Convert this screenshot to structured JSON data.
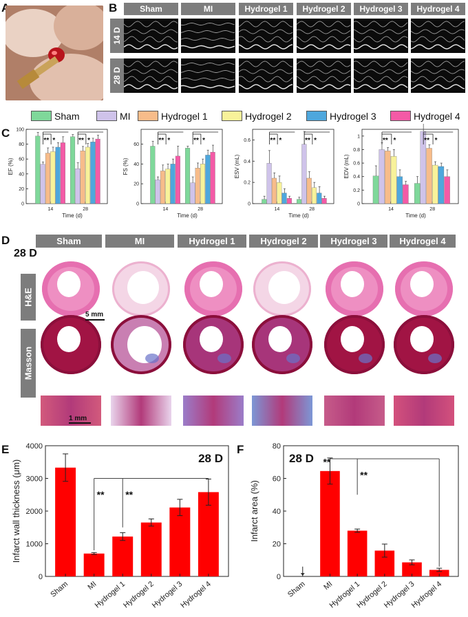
{
  "panel_letters": [
    "A",
    "B",
    "C",
    "D",
    "E",
    "F"
  ],
  "panelB": {
    "groups": [
      "Sham",
      "MI",
      "Hydrogel 1",
      "Hydrogel 2",
      "Hydrogel 3",
      "Hydrogel 4"
    ],
    "rows": [
      "14 D",
      "28 D"
    ]
  },
  "legend": [
    {
      "label": "Sham",
      "color": "#7fd89a"
    },
    {
      "label": "MI",
      "color": "#cfc3ea"
    },
    {
      "label": "Hydrogel 1",
      "color": "#f7bc8a"
    },
    {
      "label": "Hydrogel 2",
      "color": "#f8f29a"
    },
    {
      "label": "Hydrogel 3",
      "color": "#4ea7dd"
    },
    {
      "label": "Hydrogel 4",
      "color": "#f45aa6"
    }
  ],
  "panelD": {
    "day_label": "28 D",
    "groups": [
      "Sham",
      "MI",
      "Hydrogel 1",
      "Hydrogel 2",
      "Hydrogel 3",
      "Hydrogel 4"
    ],
    "stains": [
      "H&E",
      "Masson"
    ],
    "scale_top": "5 mm",
    "scale_bottom": "1 mm"
  },
  "chart_data": [
    {
      "type": "bar",
      "panel": "C",
      "xlabel": "Time (d)",
      "ylabel": "EF (%)",
      "categories": [
        "14",
        "28"
      ],
      "series": [
        {
          "name": "Sham",
          "values": [
            91,
            90
          ]
        },
        {
          "name": "MI",
          "values": [
            53,
            47
          ]
        },
        {
          "name": "Hydrogel 1",
          "values": [
            68,
            71
          ]
        },
        {
          "name": "Hydrogel 2",
          "values": [
            70,
            76
          ]
        },
        {
          "name": "Hydrogel 3",
          "values": [
            76,
            83
          ]
        },
        {
          "name": "Hydrogel 4",
          "values": [
            82,
            87
          ]
        }
      ],
      "errors": [
        [
          5,
          3
        ],
        [
          3,
          8
        ],
        [
          7,
          6
        ],
        [
          6,
          5
        ],
        [
          6,
          5
        ],
        [
          8,
          5
        ]
      ],
      "ylim": [
        0,
        100
      ],
      "sig": [
        "**",
        "*",
        "**",
        "*"
      ]
    },
    {
      "type": "bar",
      "panel": "C",
      "xlabel": "Time (d)",
      "ylabel": "FS (%)",
      "categories": [
        "14",
        "28"
      ],
      "series": [
        {
          "name": "Sham",
          "values": [
            58,
            56
          ]
        },
        {
          "name": "MI",
          "values": [
            24,
            21
          ]
        },
        {
          "name": "Hydrogel 1",
          "values": [
            33,
            36
          ]
        },
        {
          "name": "Hydrogel 2",
          "values": [
            35,
            40
          ]
        },
        {
          "name": "Hydrogel 3",
          "values": [
            40,
            49
          ]
        },
        {
          "name": "Hydrogel 4",
          "values": [
            48,
            52
          ]
        }
      ],
      "errors": [
        [
          5,
          2
        ],
        [
          3,
          6
        ],
        [
          6,
          5
        ],
        [
          5,
          5
        ],
        [
          5,
          5
        ],
        [
          10,
          7
        ]
      ],
      "ylim": [
        0,
        75
      ],
      "yticks": [
        0,
        20,
        40,
        60
      ],
      "sig": [
        "**",
        "*",
        "**",
        "*"
      ]
    },
    {
      "type": "bar",
      "panel": "C",
      "xlabel": "Time (d)",
      "ylabel": "ESV (mL)",
      "categories": [
        "14",
        "28"
      ],
      "series": [
        {
          "name": "Sham",
          "values": [
            0.04,
            0.04
          ]
        },
        {
          "name": "MI",
          "values": [
            0.38,
            0.56
          ]
        },
        {
          "name": "Hydrogel 1",
          "values": [
            0.24,
            0.24
          ]
        },
        {
          "name": "Hydrogel 2",
          "values": [
            0.2,
            0.15
          ]
        },
        {
          "name": "Hydrogel 3",
          "values": [
            0.1,
            0.1
          ]
        },
        {
          "name": "Hydrogel 4",
          "values": [
            0.05,
            0.05
          ]
        }
      ],
      "errors": [
        [
          0.03,
          0.02
        ],
        [
          0.12,
          0.12
        ],
        [
          0.05,
          0.06
        ],
        [
          0.06,
          0.05
        ],
        [
          0.04,
          0.06
        ],
        [
          0.02,
          0.02
        ]
      ],
      "ylim": [
        0,
        0.7
      ],
      "yticks": [
        0,
        0.2,
        0.4,
        0.6
      ],
      "sig": [
        "**",
        "*",
        "**",
        "*"
      ]
    },
    {
      "type": "bar",
      "panel": "C",
      "xlabel": "Time (d)",
      "ylabel": "EDV (mL)",
      "categories": [
        "14",
        "28"
      ],
      "series": [
        {
          "name": "Sham",
          "values": [
            0.41,
            0.3
          ]
        },
        {
          "name": "MI",
          "values": [
            0.8,
            1.07
          ]
        },
        {
          "name": "Hydrogel 1",
          "values": [
            0.78,
            0.82
          ]
        },
        {
          "name": "Hydrogel 2",
          "values": [
            0.7,
            0.57
          ]
        },
        {
          "name": "Hydrogel 3",
          "values": [
            0.4,
            0.55
          ]
        },
        {
          "name": "Hydrogel 4",
          "values": [
            0.28,
            0.4
          ]
        }
      ],
      "errors": [
        [
          0.15,
          0.1
        ],
        [
          0.1,
          0.15
        ],
        [
          0.05,
          0.05
        ],
        [
          0.1,
          0.05
        ],
        [
          0.1,
          0.05
        ],
        [
          0.05,
          0.1
        ]
      ],
      "ylim": [
        0,
        1.1
      ],
      "yticks": [
        0,
        0.2,
        0.4,
        0.6,
        0.8,
        1.0
      ],
      "sig": [
        "**",
        "*",
        "**",
        "*"
      ]
    },
    {
      "type": "bar",
      "panel": "E",
      "title": "28 D",
      "ylabel": "Infarct wall thickness (μm)",
      "categories": [
        "Sham",
        "MI",
        "Hydrogel 1",
        "Hydrogel 2",
        "Hydrogel 3",
        "Hydrogel 4"
      ],
      "values": [
        3330,
        700,
        1220,
        1650,
        2110,
        2580
      ],
      "errors": [
        420,
        30,
        120,
        110,
        250,
        400
      ],
      "ylim": [
        0,
        4000
      ],
      "yticks": [
        0,
        1000,
        2000,
        3000,
        4000
      ],
      "sig": [
        "**",
        "**"
      ],
      "color": "#ff0000"
    },
    {
      "type": "bar",
      "panel": "F",
      "title": "28 D",
      "ylabel": "Infarct area (%)",
      "categories": [
        "Sham",
        "MI",
        "Hydrogel 1",
        "Hydrogel 2",
        "Hydrogel 3",
        "Hydrogel 4"
      ],
      "values": [
        0,
        64.5,
        28,
        15.8,
        8.6,
        4
      ],
      "errors": [
        0,
        8,
        1,
        4,
        1.5,
        1
      ],
      "ylim": [
        0,
        80
      ],
      "yticks": [
        0,
        20,
        40,
        60,
        80
      ],
      "sig": [
        "**",
        "**"
      ],
      "color": "#ff0000"
    }
  ]
}
